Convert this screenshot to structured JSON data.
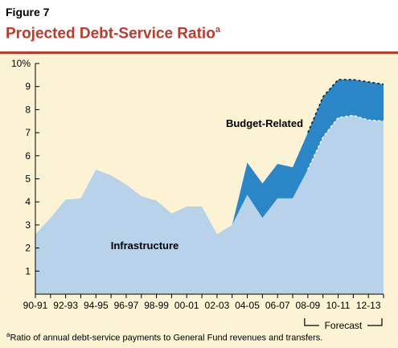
{
  "figure_label": "Figure 7",
  "title": {
    "main": "Projected Debt-Service Ratio",
    "marker": "a"
  },
  "footnote": {
    "marker": "a",
    "text": "Ratio of annual debt-service payments to General Fund revenues and transfers."
  },
  "colors": {
    "infrastructure": "#b8d2ea",
    "budget_related": "#2b86c8",
    "title": "#c0392b",
    "background": "#fbf3d4"
  },
  "chart_data": {
    "type": "area",
    "stacked": true,
    "x": [
      "90-91",
      "91-92",
      "92-93",
      "93-94",
      "94-95",
      "95-96",
      "96-97",
      "97-98",
      "98-99",
      "99-00",
      "00-01",
      "01-02",
      "02-03",
      "03-04",
      "04-05",
      "05-06",
      "06-07",
      "07-08",
      "08-09",
      "09-10",
      "10-11",
      "11-12",
      "12-13",
      "13-14"
    ],
    "x_tick_labels": [
      "90-91",
      "92-93",
      "94-95",
      "96-97",
      "98-99",
      "00-01",
      "02-03",
      "04-05",
      "06-07",
      "08-09",
      "10-11",
      "12-13"
    ],
    "series": [
      {
        "name": "Infrastructure",
        "values": [
          2.6,
          3.3,
          4.1,
          4.15,
          5.4,
          5.15,
          4.75,
          4.25,
          4.05,
          3.5,
          3.8,
          3.8,
          2.6,
          3.0,
          4.3,
          3.3,
          4.15,
          4.15,
          5.4,
          6.8,
          7.65,
          7.75,
          7.55,
          7.5
        ]
      },
      {
        "name": "Budget-Related",
        "values": [
          0,
          0,
          0,
          0,
          0,
          0,
          0,
          0,
          0,
          0,
          0,
          0,
          0,
          0,
          1.4,
          1.5,
          1.5,
          1.35,
          1.6,
          1.75,
          1.65,
          1.55,
          1.65,
          1.6
        ]
      }
    ],
    "y_ticks": [
      "",
      "1",
      "2",
      "3",
      "4",
      "5",
      "6",
      "7",
      "8",
      "9",
      "10%"
    ],
    "ylim": [
      0,
      10
    ],
    "grid": false,
    "annotations": {
      "infrastructure_label": "Infrastructure",
      "budget_label": "Budget-Related",
      "forecast_label": "Forecast",
      "forecast_range": [
        "08-09",
        "13-14"
      ]
    }
  }
}
